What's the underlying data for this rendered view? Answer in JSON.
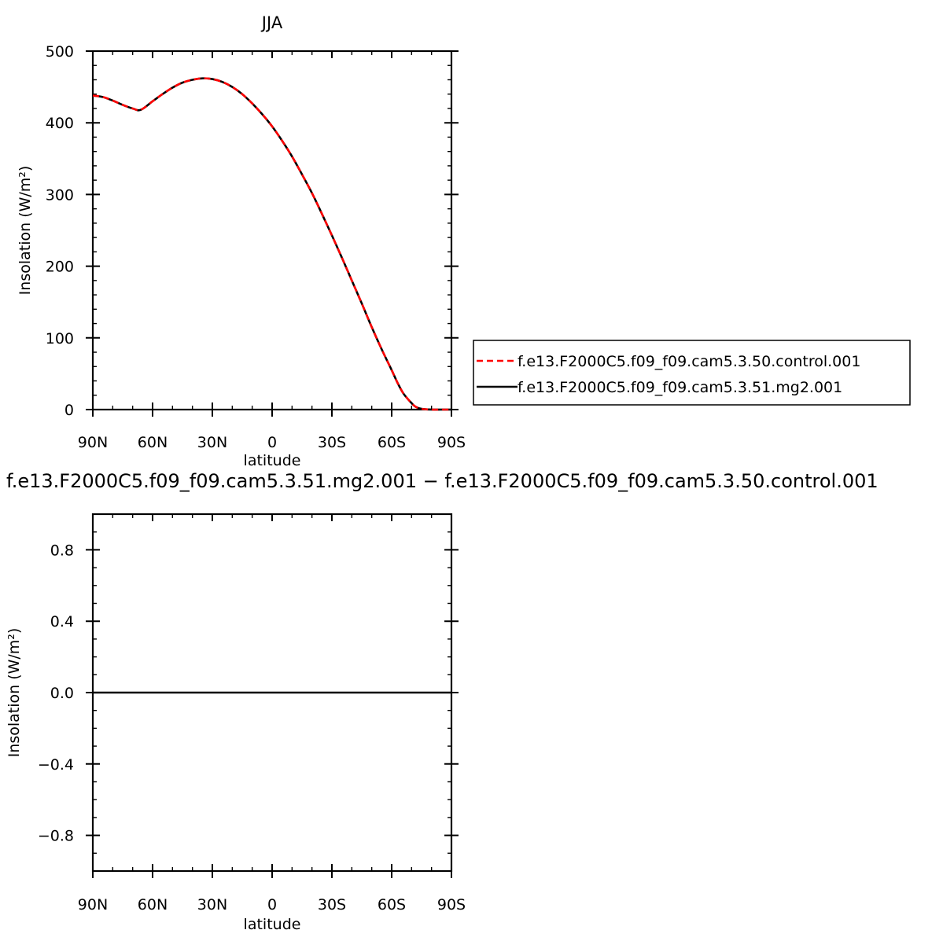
{
  "chart_data": [
    {
      "type": "line",
      "title": "JJA",
      "xlabel": "latitude",
      "ylabel": "Insolation (W/m²)",
      "xlim": [
        90,
        -90
      ],
      "ylim": [
        0,
        500
      ],
      "x_ticks": [
        {
          "value": 90,
          "label": "90N"
        },
        {
          "value": 60,
          "label": "60N"
        },
        {
          "value": 30,
          "label": "30N"
        },
        {
          "value": 0,
          "label": "0"
        },
        {
          "value": -30,
          "label": "30S"
        },
        {
          "value": -60,
          "label": "60S"
        },
        {
          "value": -90,
          "label": "90S"
        }
      ],
      "y_ticks": [
        {
          "value": 0,
          "label": "0"
        },
        {
          "value": 100,
          "label": "100"
        },
        {
          "value": 200,
          "label": "200"
        },
        {
          "value": 300,
          "label": "300"
        },
        {
          "value": 400,
          "label": "400"
        },
        {
          "value": 500,
          "label": "500"
        }
      ],
      "x": [
        90,
        85,
        80,
        75,
        70,
        66,
        60,
        55,
        50,
        45,
        40,
        35,
        30,
        25,
        20,
        15,
        10,
        5,
        0,
        -5,
        -10,
        -15,
        -20,
        -25,
        -30,
        -35,
        -40,
        -45,
        -50,
        -55,
        -60,
        -63,
        -66,
        -70,
        -72,
        -75,
        -80,
        -85,
        -90
      ],
      "series": [
        {
          "name": "f.e13.F2000C5.f09_f09.cam5.3.50.control.001",
          "color": "#ff0000",
          "dash": "dashed",
          "values": [
            438,
            436,
            431,
            425,
            420,
            418,
            430,
            440,
            449,
            456,
            460,
            462,
            461,
            457,
            450,
            440,
            427,
            412,
            395,
            375,
            353,
            328,
            302,
            273,
            243,
            212,
            180,
            148,
            115,
            84,
            55,
            37,
            22,
            9,
            4,
            1,
            0,
            0,
            0
          ]
        },
        {
          "name": "f.e13.F2000C5.f09_f09.cam5.3.51.mg2.001",
          "color": "#000000",
          "dash": "solid",
          "values": [
            438,
            436,
            431,
            425,
            420,
            418,
            430,
            440,
            449,
            456,
            460,
            462,
            461,
            457,
            450,
            440,
            427,
            412,
            395,
            375,
            353,
            328,
            302,
            273,
            243,
            212,
            180,
            148,
            115,
            84,
            55,
            37,
            22,
            9,
            4,
            1,
            0,
            0,
            0
          ]
        }
      ],
      "legend": "right"
    },
    {
      "type": "line",
      "title": "f.e13.F2000C5.f09_f09.cam5.3.51.mg2.001 − f.e13.F2000C5.f09_f09.cam5.3.50.control.001",
      "xlabel": "latitude",
      "ylabel": "Insolation (W/m²)",
      "xlim": [
        90,
        -90
      ],
      "ylim": [
        -1,
        1
      ],
      "x_ticks": [
        {
          "value": 90,
          "label": "90N"
        },
        {
          "value": 60,
          "label": "60N"
        },
        {
          "value": 30,
          "label": "30N"
        },
        {
          "value": 0,
          "label": "0"
        },
        {
          "value": -30,
          "label": "30S"
        },
        {
          "value": -60,
          "label": "60S"
        },
        {
          "value": -90,
          "label": "90S"
        }
      ],
      "y_ticks": [
        {
          "value": -0.8,
          "label": "−0.8"
        },
        {
          "value": -0.4,
          "label": "−0.4"
        },
        {
          "value": 0.0,
          "label": "0.0"
        },
        {
          "value": 0.4,
          "label": "0.4"
        },
        {
          "value": 0.8,
          "label": "0.8"
        }
      ],
      "x": [
        90,
        -90
      ],
      "series": [
        {
          "color": "#000000",
          "dash": "solid",
          "values": [
            0,
            0
          ]
        }
      ]
    }
  ]
}
